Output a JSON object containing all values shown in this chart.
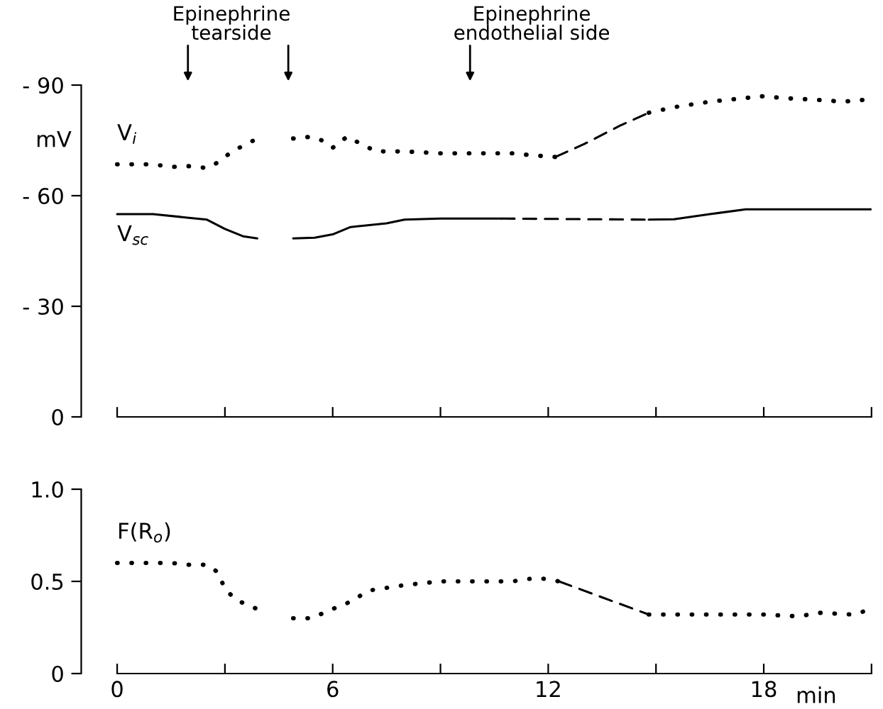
{
  "chart_data": [
    {
      "type": "line",
      "ylabel": "mV",
      "ylim": [
        0,
        -90
      ],
      "yticks": [
        {
          "value": -90,
          "label": "- 90"
        },
        {
          "value": -60,
          "label": "- 60"
        },
        {
          "value": -30,
          "label": "- 30"
        },
        0
      ],
      "xlim": [
        -1,
        21
      ],
      "xticks": [
        0,
        3,
        6,
        9,
        12,
        15,
        18,
        21
      ],
      "tick_labels": "y",
      "grid": false,
      "legend": false,
      "annotations": [
        "Epinephrine\ntearside",
        "Epinephrine\nendothelial side"
      ],
      "series": [
        {
          "name": "V$_{i}$",
          "color": "#000000",
          "line_style": "dotted",
          "x": [
            0,
            0.5,
            1,
            1.5,
            2,
            2.5,
            2.8,
            3.2,
            3.5,
            3.8,
            4.3,
            4.9,
            5.4,
            5.7,
            6,
            6.4,
            6.8,
            7.2,
            8,
            9,
            10,
            11,
            11.5,
            12.2
          ],
          "values": [
            -68.5,
            -68.5,
            -68.5,
            -67.8,
            -68,
            -67.5,
            -69,
            -72,
            -73.5,
            -75,
            null,
            -75.5,
            -76,
            -75,
            -73,
            -76,
            -74,
            -72,
            -72,
            -71.5,
            -71.5,
            -71.5,
            -71,
            -70.5
          ]
        },
        {
          "color": "#000000",
          "line_style": "dashed",
          "x": [
            12.2,
            13,
            14,
            14.8
          ],
          "values": [
            -70.5,
            -74,
            -79,
            -82.5
          ]
        },
        {
          "color": "#000000",
          "line_style": "dotted",
          "x": [
            14.8,
            15.5,
            16.5,
            17.5,
            18,
            18.5,
            19.5,
            20.2,
            20.8
          ],
          "values": [
            -82.5,
            -84,
            -85.5,
            -86.5,
            -87,
            -86.5,
            -86,
            -85.5,
            -86
          ]
        },
        {
          "name": "V$_{sc}$",
          "color": "#000000",
          "line_style": "solid",
          "x": [
            0,
            1,
            2,
            2.5,
            3,
            3.5,
            3.9,
            4.3,
            4.9,
            5.5,
            6,
            6.5,
            7.5,
            8,
            9,
            10.7
          ],
          "values": [
            -55,
            -55,
            -54,
            -53.5,
            -51,
            -49,
            -48.4,
            null,
            -48.4,
            -48.6,
            -49.5,
            -51.5,
            -52.5,
            -53.5,
            -53.8,
            -53.8
          ]
        },
        {
          "color": "#000000",
          "line_style": "dashed",
          "x": [
            10.7,
            14.8
          ],
          "values": [
            -53.8,
            -53.5
          ]
        },
        {
          "color": "#000000",
          "line_style": "solid",
          "x": [
            14.8,
            15.5,
            16.5,
            17.5,
            21
          ],
          "values": [
            -53.5,
            -53.6,
            -55,
            -56.3,
            -56.3
          ]
        }
      ]
    },
    {
      "type": "line",
      "xlabel": "min",
      "ylim": [
        0,
        1.0
      ],
      "yticks": [
        0,
        0.5,
        {
          "value": 1.0,
          "label": "1.0"
        }
      ],
      "xlim": [
        -1,
        21
      ],
      "xticks": [
        0,
        {
          "value": 3,
          "label": null
        },
        6,
        {
          "value": 9,
          "label": null
        },
        12,
        {
          "value": 15,
          "label": null
        },
        18,
        {
          "value": 21,
          "label": null
        }
      ],
      "grid": false,
      "legend": false,
      "series": [
        {
          "name": "F(R$_{o}$)",
          "color": "#000000",
          "line_style": "dotted",
          "x": [
            0,
            0.5,
            1,
            1.5,
            2,
            2.5,
            2.8,
            3,
            3.3,
            3.9,
            4.4,
            4.9,
            5.4,
            6,
            6.5,
            7,
            8,
            9,
            10,
            11,
            11.7,
            12.3
          ],
          "values": [
            0.6,
            0.6,
            0.6,
            0.6,
            0.59,
            0.59,
            0.55,
            0.46,
            0.4,
            0.35,
            null,
            0.3,
            0.3,
            0.35,
            0.39,
            0.45,
            0.48,
            0.5,
            0.5,
            0.5,
            0.52,
            0.5
          ]
        },
        {
          "color": "#000000",
          "line_style": "dashed",
          "x": [
            12.3,
            14.8
          ],
          "values": [
            0.5,
            0.32
          ]
        },
        {
          "color": "#000000",
          "line_style": "dotted",
          "x": [
            14.8,
            16,
            17,
            18,
            19,
            19.5,
            20.5,
            21
          ],
          "values": [
            0.32,
            0.32,
            0.32,
            0.32,
            0.31,
            0.33,
            0.32,
            0.35
          ]
        }
      ]
    }
  ]
}
